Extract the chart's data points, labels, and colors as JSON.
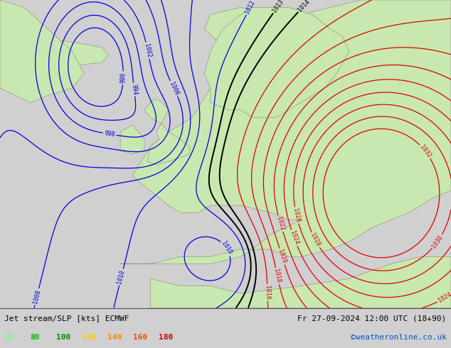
{
  "title_left": "Jet stream/SLP [kts] ECMWF",
  "title_right": "Fr 27-09-2024 12:00 UTC (18+90)",
  "credit": "©weatheronline.co.uk",
  "legend_values": [
    60,
    80,
    100,
    120,
    140,
    160,
    180
  ],
  "legend_colors": [
    "#90ee90",
    "#00bb00",
    "#008800",
    "#ffcc00",
    "#ff8800",
    "#ff4400",
    "#cc0000"
  ],
  "slp_color_blue": "#0000dd",
  "slp_color_red": "#dd0000",
  "slp_color_black": "#000000",
  "sea_color": "#c8c8c8",
  "land_color": "#c8e8b0",
  "land_green_dark": "#00cc00",
  "land_teal": "#90d8c0",
  "fig_width": 6.34,
  "fig_height": 4.9,
  "dpi": 100,
  "bottom_bar_color": "#d0d0d0"
}
